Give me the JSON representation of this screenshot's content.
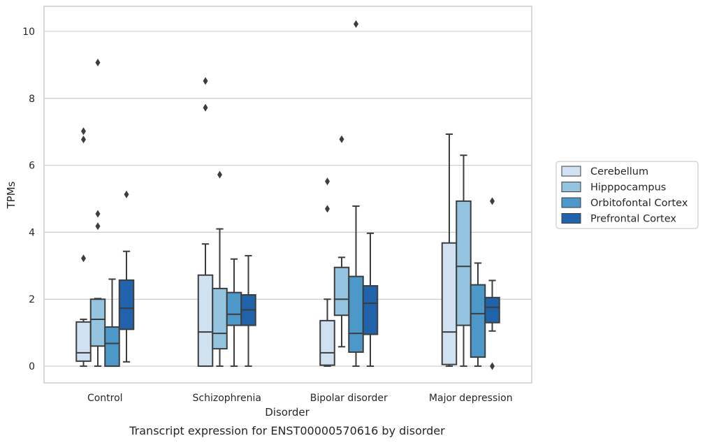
{
  "chart_data": {
    "type": "box",
    "title": "",
    "caption": "Transcript expression for ENST00000570616 by disorder",
    "xlabel": "Disorder",
    "ylabel": "TPMs",
    "ylim": [
      -0.5,
      10.75
    ],
    "yticks": [
      0,
      2,
      4,
      6,
      8,
      10
    ],
    "grid": "horizontal",
    "legend_position": "right",
    "categories": [
      "Control",
      "Schizophrenia",
      "Bipolar disorder",
      "Major depression"
    ],
    "series": [
      {
        "name": "Cerebellum",
        "color": "#d0e1f1",
        "boxes": [
          {
            "min": 0,
            "q1": 0.15,
            "median": 0.4,
            "q3": 1.32,
            "max": 1.4,
            "outliers": [
              3.22,
              6.77,
              7.02
            ]
          },
          {
            "min": 0,
            "q1": 0,
            "median": 1.02,
            "q3": 2.72,
            "max": 3.65,
            "outliers": [
              7.72,
              8.52
            ]
          },
          {
            "min": 0,
            "q1": 0.03,
            "median": 0.4,
            "q3": 1.36,
            "max": 2.0,
            "outliers": [
              4.7,
              5.52
            ]
          },
          {
            "min": 0,
            "q1": 0.05,
            "median": 1.02,
            "q3": 3.68,
            "max": 6.93,
            "outliers": []
          }
        ]
      },
      {
        "name": "Hipppocampus",
        "color": "#94c4df",
        "boxes": [
          {
            "min": 0,
            "q1": 0.6,
            "median": 1.4,
            "q3": 2.0,
            "max": 2.02,
            "outliers": [
              4.18,
              4.55,
              9.07
            ]
          },
          {
            "min": 0,
            "q1": 0.52,
            "median": 0.98,
            "q3": 2.32,
            "max": 4.1,
            "outliers": [
              5.72
            ]
          },
          {
            "min": 0.58,
            "q1": 1.52,
            "median": 2.0,
            "q3": 2.95,
            "max": 3.25,
            "outliers": [
              6.78
            ]
          },
          {
            "min": 0,
            "q1": 1.22,
            "median": 2.98,
            "q3": 4.93,
            "max": 6.3,
            "outliers": []
          }
        ]
      },
      {
        "name": "Orbitofontal Cortex",
        "color": "#4b98c9",
        "boxes": [
          {
            "min": 0,
            "q1": 0,
            "median": 0.68,
            "q3": 1.17,
            "max": 2.6,
            "outliers": []
          },
          {
            "min": 0,
            "q1": 1.22,
            "median": 1.55,
            "q3": 2.2,
            "max": 3.2,
            "outliers": []
          },
          {
            "min": 0,
            "q1": 0.42,
            "median": 0.98,
            "q3": 2.68,
            "max": 4.78,
            "outliers": [
              10.22
            ]
          },
          {
            "min": 0,
            "q1": 0.27,
            "median": 1.57,
            "q3": 2.43,
            "max": 3.08,
            "outliers": []
          }
        ]
      },
      {
        "name": "Prefrontal Cortex",
        "color": "#2163aa",
        "boxes": [
          {
            "min": 0.13,
            "q1": 1.1,
            "median": 1.73,
            "q3": 2.57,
            "max": 3.43,
            "outliers": [
              5.13
            ]
          },
          {
            "min": 0,
            "q1": 1.22,
            "median": 1.68,
            "q3": 2.13,
            "max": 3.3,
            "outliers": []
          },
          {
            "min": 0,
            "q1": 0.95,
            "median": 1.88,
            "q3": 2.4,
            "max": 3.97,
            "outliers": []
          },
          {
            "min": 1.05,
            "q1": 1.3,
            "median": 1.76,
            "q3": 2.05,
            "max": 2.56,
            "outliers": [
              0,
              4.93
            ]
          }
        ]
      }
    ]
  }
}
